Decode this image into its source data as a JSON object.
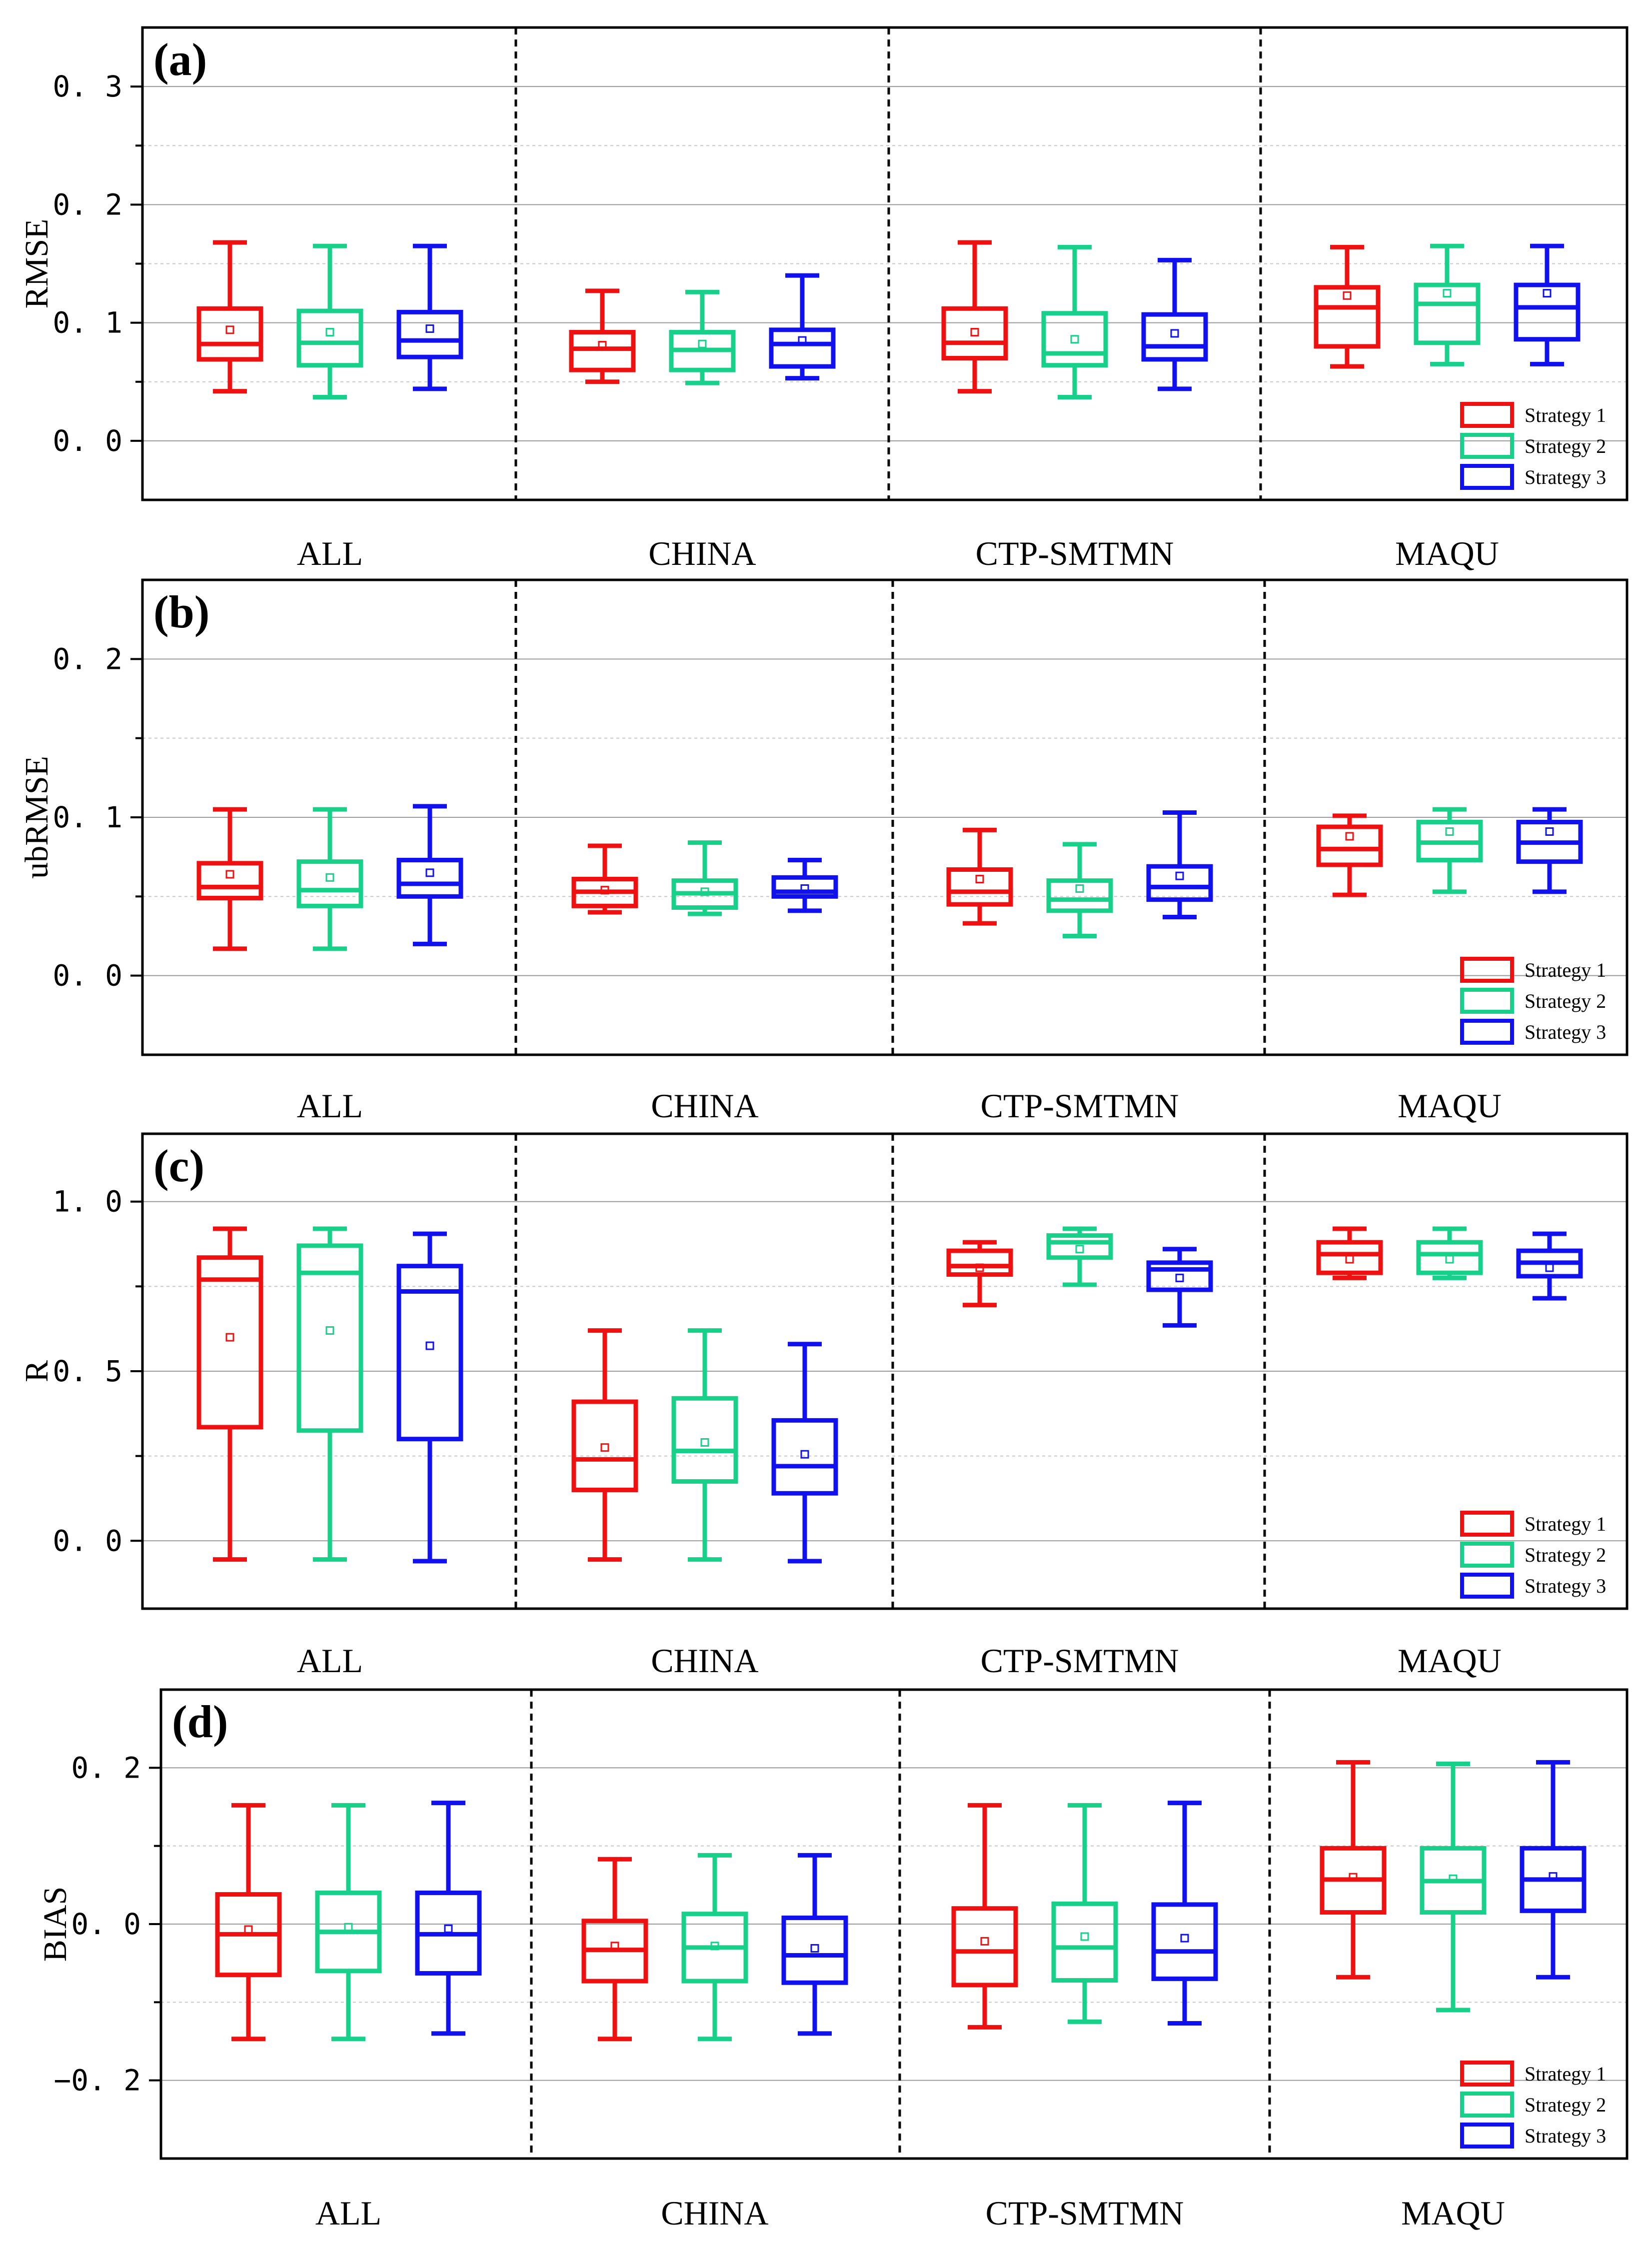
{
  "chart_data": [
    {
      "type": "box",
      "panel_tag": "(a)",
      "ylabel": "RMSE",
      "ylim": [
        -0.05,
        0.35
      ],
      "yticks": [
        0.0,
        0.1,
        0.2,
        0.3
      ],
      "ytick_labels": [
        "0. 0",
        "0. 1",
        "0. 2",
        "0. 3"
      ],
      "minor_step": 0.05,
      "categories": [
        "ALL",
        "CHINA",
        "CTP-SMTMN",
        "MAQU"
      ],
      "legend": [
        "Strategy 1",
        "Strategy 2",
        "Strategy 3"
      ],
      "series": [
        {
          "name": "Strategy 1",
          "color": "#ee1111",
          "boxes": [
            {
              "min": 0.042,
              "q1": 0.069,
              "median": 0.082,
              "q3": 0.112,
              "max": 0.168,
              "mean": 0.094
            },
            {
              "min": 0.05,
              "q1": 0.06,
              "median": 0.078,
              "q3": 0.092,
              "max": 0.127,
              "mean": 0.081
            },
            {
              "min": 0.042,
              "q1": 0.07,
              "median": 0.083,
              "q3": 0.112,
              "max": 0.168,
              "mean": 0.092
            },
            {
              "min": 0.063,
              "q1": 0.08,
              "median": 0.113,
              "q3": 0.13,
              "max": 0.164,
              "mean": 0.123
            }
          ]
        },
        {
          "name": "Strategy 2",
          "color": "#19d08a",
          "boxes": [
            {
              "min": 0.037,
              "q1": 0.064,
              "median": 0.083,
              "q3": 0.11,
              "max": 0.165,
              "mean": 0.092
            },
            {
              "min": 0.049,
              "q1": 0.06,
              "median": 0.077,
              "q3": 0.092,
              "max": 0.126,
              "mean": 0.082
            },
            {
              "min": 0.037,
              "q1": 0.064,
              "median": 0.074,
              "q3": 0.108,
              "max": 0.164,
              "mean": 0.086
            },
            {
              "min": 0.065,
              "q1": 0.083,
              "median": 0.116,
              "q3": 0.132,
              "max": 0.165,
              "mean": 0.125
            }
          ]
        },
        {
          "name": "Strategy 3",
          "color": "#1111ee",
          "boxes": [
            {
              "min": 0.044,
              "q1": 0.071,
              "median": 0.085,
              "q3": 0.109,
              "max": 0.165,
              "mean": 0.095
            },
            {
              "min": 0.053,
              "q1": 0.063,
              "median": 0.082,
              "q3": 0.094,
              "max": 0.14,
              "mean": 0.085
            },
            {
              "min": 0.044,
              "q1": 0.069,
              "median": 0.08,
              "q3": 0.107,
              "max": 0.153,
              "mean": 0.091
            },
            {
              "min": 0.065,
              "q1": 0.086,
              "median": 0.113,
              "q3": 0.132,
              "max": 0.165,
              "mean": 0.125
            }
          ]
        }
      ]
    },
    {
      "type": "box",
      "panel_tag": "(b)",
      "ylabel": "ubRMSE",
      "ylim": [
        -0.05,
        0.25
      ],
      "yticks": [
        0.0,
        0.1,
        0.2
      ],
      "ytick_labels": [
        "0. 0",
        "0. 1",
        "0. 2"
      ],
      "minor_step": 0.05,
      "categories": [
        "ALL",
        "CHINA",
        "CTP-SMTMN",
        "MAQU"
      ],
      "legend": [
        "Strategy 1",
        "Strategy 2",
        "Strategy 3"
      ],
      "series": [
        {
          "name": "Strategy 1",
          "color": "#ee1111",
          "boxes": [
            {
              "min": 0.017,
              "q1": 0.049,
              "median": 0.056,
              "q3": 0.071,
              "max": 0.105,
              "mean": 0.064
            },
            {
              "min": 0.04,
              "q1": 0.044,
              "median": 0.053,
              "q3": 0.061,
              "max": 0.082,
              "mean": 0.054
            },
            {
              "min": 0.033,
              "q1": 0.045,
              "median": 0.053,
              "q3": 0.067,
              "max": 0.092,
              "mean": 0.061
            },
            {
              "min": 0.051,
              "q1": 0.07,
              "median": 0.08,
              "q3": 0.094,
              "max": 0.101,
              "mean": 0.088
            }
          ]
        },
        {
          "name": "Strategy 2",
          "color": "#19d08a",
          "boxes": [
            {
              "min": 0.017,
              "q1": 0.044,
              "median": 0.054,
              "q3": 0.072,
              "max": 0.105,
              "mean": 0.062
            },
            {
              "min": 0.039,
              "q1": 0.043,
              "median": 0.052,
              "q3": 0.06,
              "max": 0.084,
              "mean": 0.053
            },
            {
              "min": 0.025,
              "q1": 0.041,
              "median": 0.048,
              "q3": 0.06,
              "max": 0.083,
              "mean": 0.055
            },
            {
              "min": 0.053,
              "q1": 0.073,
              "median": 0.084,
              "q3": 0.097,
              "max": 0.105,
              "mean": 0.091
            }
          ]
        },
        {
          "name": "Strategy 3",
          "color": "#1111ee",
          "boxes": [
            {
              "min": 0.02,
              "q1": 0.05,
              "median": 0.058,
              "q3": 0.073,
              "max": 0.107,
              "mean": 0.065
            },
            {
              "min": 0.041,
              "q1": 0.05,
              "median": 0.053,
              "q3": 0.062,
              "max": 0.073,
              "mean": 0.055
            },
            {
              "min": 0.037,
              "q1": 0.048,
              "median": 0.056,
              "q3": 0.069,
              "max": 0.103,
              "mean": 0.063
            },
            {
              "min": 0.053,
              "q1": 0.072,
              "median": 0.084,
              "q3": 0.097,
              "max": 0.105,
              "mean": 0.091
            }
          ]
        }
      ]
    },
    {
      "type": "box",
      "panel_tag": "(c)",
      "ylabel": "R",
      "ylim": [
        -0.2,
        1.2
      ],
      "yticks": [
        0.0,
        0.5,
        1.0
      ],
      "ytick_labels": [
        "0. 0",
        "0. 5",
        "1. 0"
      ],
      "minor_step": 0.25,
      "categories": [
        "ALL",
        "CHINA",
        "CTP-SMTMN",
        "MAQU"
      ],
      "legend": [
        "Strategy 1",
        "Strategy 2",
        "Strategy 3"
      ],
      "series": [
        {
          "name": "Strategy 1",
          "color": "#ee1111",
          "boxes": [
            {
              "min": -0.055,
              "q1": 0.335,
              "median": 0.77,
              "q3": 0.835,
              "max": 0.92,
              "mean": 0.6
            },
            {
              "min": -0.055,
              "q1": 0.15,
              "median": 0.24,
              "q3": 0.41,
              "max": 0.62,
              "mean": 0.275
            },
            {
              "min": 0.695,
              "q1": 0.785,
              "median": 0.81,
              "q3": 0.855,
              "max": 0.88,
              "mean": 0.805
            },
            {
              "min": 0.775,
              "q1": 0.79,
              "median": 0.845,
              "q3": 0.88,
              "max": 0.92,
              "mean": 0.83
            }
          ]
        },
        {
          "name": "Strategy 2",
          "color": "#19d08a",
          "boxes": [
            {
              "min": -0.055,
              "q1": 0.325,
              "median": 0.79,
              "q3": 0.87,
              "max": 0.92,
              "mean": 0.62
            },
            {
              "min": -0.055,
              "q1": 0.175,
              "median": 0.265,
              "q3": 0.42,
              "max": 0.62,
              "mean": 0.29
            },
            {
              "min": 0.755,
              "q1": 0.835,
              "median": 0.88,
              "q3": 0.9,
              "max": 0.92,
              "mean": 0.86
            },
            {
              "min": 0.775,
              "q1": 0.79,
              "median": 0.845,
              "q3": 0.88,
              "max": 0.92,
              "mean": 0.83
            }
          ]
        },
        {
          "name": "Strategy 3",
          "color": "#1111ee",
          "boxes": [
            {
              "min": -0.06,
              "q1": 0.3,
              "median": 0.735,
              "q3": 0.81,
              "max": 0.905,
              "mean": 0.575
            },
            {
              "min": -0.06,
              "q1": 0.14,
              "median": 0.22,
              "q3": 0.355,
              "max": 0.58,
              "mean": 0.255
            },
            {
              "min": 0.635,
              "q1": 0.74,
              "median": 0.8,
              "q3": 0.82,
              "max": 0.86,
              "mean": 0.775
            },
            {
              "min": 0.715,
              "q1": 0.78,
              "median": 0.82,
              "q3": 0.855,
              "max": 0.905,
              "mean": 0.805
            }
          ]
        }
      ]
    },
    {
      "type": "box",
      "panel_tag": "(d)",
      "ylabel": "BIAS",
      "ylim": [
        -0.3,
        0.3
      ],
      "yticks": [
        -0.2,
        0.0,
        0.2
      ],
      "ytick_labels": [
        "−0. 2",
        "0. 0",
        "0. 2"
      ],
      "minor_step": 0.1,
      "categories": [
        "ALL",
        "CHINA",
        "CTP-SMTMN",
        "MAQU"
      ],
      "legend": [
        "Strategy 1",
        "Strategy 2",
        "Strategy 3"
      ],
      "series": [
        {
          "name": "Strategy 1",
          "color": "#ee1111",
          "boxes": [
            {
              "min": -0.147,
              "q1": -0.065,
              "median": -0.013,
              "q3": 0.038,
              "max": 0.152,
              "mean": -0.007
            },
            {
              "min": -0.147,
              "q1": -0.073,
              "median": -0.033,
              "q3": 0.004,
              "max": 0.083,
              "mean": -0.028
            },
            {
              "min": -0.132,
              "q1": -0.078,
              "median": -0.035,
              "q3": 0.02,
              "max": 0.152,
              "mean": -0.022
            },
            {
              "min": -0.068,
              "q1": 0.015,
              "median": 0.057,
              "q3": 0.097,
              "max": 0.207,
              "mean": 0.06
            }
          ]
        },
        {
          "name": "Strategy 2",
          "color": "#19d08a",
          "boxes": [
            {
              "min": -0.147,
              "q1": -0.06,
              "median": -0.01,
              "q3": 0.04,
              "max": 0.152,
              "mean": -0.004
            },
            {
              "min": -0.147,
              "q1": -0.073,
              "median": -0.03,
              "q3": 0.013,
              "max": 0.088,
              "mean": -0.028
            },
            {
              "min": -0.125,
              "q1": -0.072,
              "median": -0.03,
              "q3": 0.026,
              "max": 0.152,
              "mean": -0.016
            },
            {
              "min": -0.11,
              "q1": 0.015,
              "median": 0.055,
              "q3": 0.097,
              "max": 0.205,
              "mean": 0.058
            }
          ]
        },
        {
          "name": "Strategy 3",
          "color": "#1111ee",
          "boxes": [
            {
              "min": -0.14,
              "q1": -0.063,
              "median": -0.013,
              "q3": 0.04,
              "max": 0.155,
              "mean": -0.006
            },
            {
              "min": -0.14,
              "q1": -0.075,
              "median": -0.04,
              "q3": 0.008,
              "max": 0.088,
              "mean": -0.031
            },
            {
              "min": -0.127,
              "q1": -0.07,
              "median": -0.035,
              "q3": 0.025,
              "max": 0.155,
              "mean": -0.018
            },
            {
              "min": -0.068,
              "q1": 0.017,
              "median": 0.057,
              "q3": 0.097,
              "max": 0.207,
              "mean": 0.061
            }
          ]
        }
      ]
    }
  ]
}
